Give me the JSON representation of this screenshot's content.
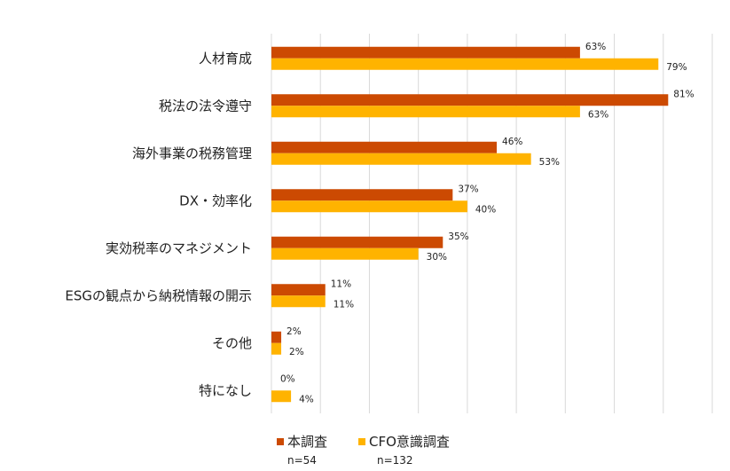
{
  "chart_data": {
    "type": "bar",
    "orientation": "horizontal",
    "categories": [
      "人材育成",
      "税法の法令遵守",
      "海外事業の税務管理",
      "DX・効率化",
      "実効税率のマネジメント",
      "ESGの観点から納税情報の開示",
      "その他",
      "特になし"
    ],
    "series": [
      {
        "name": "本調査",
        "n": "n=54",
        "color": "#CC4A02",
        "values": [
          63,
          81,
          46,
          37,
          35,
          11,
          2,
          0
        ]
      },
      {
        "name": "CFO意識調査",
        "n": "n=132",
        "color": "#FFB300",
        "values": [
          79,
          63,
          53,
          40,
          30,
          11,
          2,
          4
        ]
      }
    ],
    "xlim": [
      0,
      90
    ],
    "grid": true,
    "legend": "bottom-left",
    "value_suffix": "%"
  }
}
